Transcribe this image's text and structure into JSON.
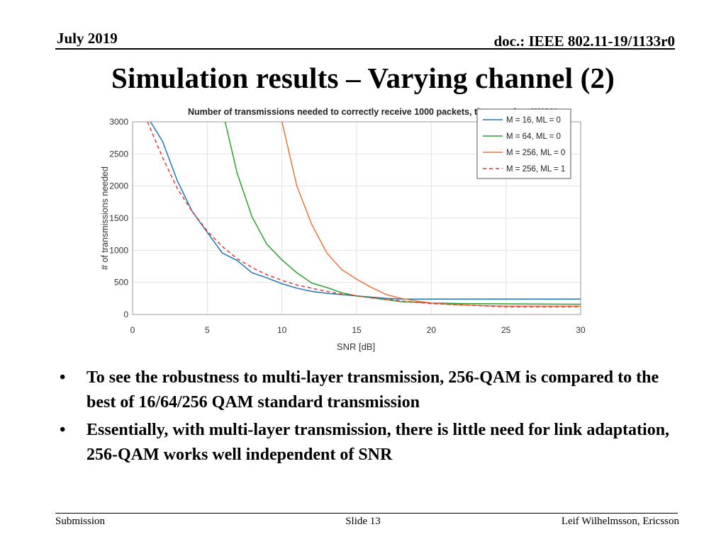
{
  "header": {
    "date": "July 2019",
    "doc": "doc.: IEEE 802.11-19/1133r0"
  },
  "slide": {
    "title": "Simulation results – Varying channel (2)"
  },
  "bullets": [
    "To see the robustness to multi-layer transmission, 256-QAM is compared to the best of 16/64/256 QAM standard transmission",
    "Essentially, with multi-layer transmission, there is little need for link adaptation, 256-QAM works well independent of SNR"
  ],
  "bullet_glyph": "•",
  "footer": {
    "left": "Submission",
    "center": "Slide 13",
    "right": "Leif Wilhelmsson, Ericsson"
  },
  "chart_data": {
    "type": "line",
    "title": "Number of transmissions needed to correctly receive 1000 packets, time-varying AWGN",
    "xlabel": "SNR [dB]",
    "ylabel": "# of transmissions needed",
    "xlim": [
      0,
      30
    ],
    "ylim": [
      0,
      3000
    ],
    "xticks": [
      0,
      5,
      10,
      15,
      20,
      25,
      30
    ],
    "yticks": [
      0,
      500,
      1000,
      1500,
      2000,
      2500,
      3000
    ],
    "grid": true,
    "legend_position": "top-right",
    "series": [
      {
        "name": "M = 16, ML = 0",
        "color": "#1f77b4",
        "dash": "solid",
        "x": [
          1.2,
          2,
          3,
          4,
          5,
          6,
          7,
          8,
          9,
          10,
          11,
          12,
          13,
          14,
          15,
          16,
          17,
          18,
          19,
          20,
          21,
          22,
          25,
          30
        ],
        "y": [
          3000,
          2700,
          2080,
          1600,
          1280,
          960,
          840,
          650,
          570,
          480,
          410,
          360,
          330,
          310,
          290,
          270,
          250,
          240,
          240,
          240,
          240,
          240,
          240,
          240
        ]
      },
      {
        "name": "M = 64, ML = 0",
        "color": "#2ca02c",
        "dash": "solid",
        "x": [
          6.2,
          7,
          8,
          9,
          10,
          11,
          12,
          13,
          14,
          15,
          16,
          17,
          18,
          19,
          20,
          22,
          25,
          30
        ],
        "y": [
          3000,
          2200,
          1520,
          1090,
          850,
          650,
          490,
          420,
          340,
          290,
          260,
          230,
          200,
          190,
          180,
          170,
          165,
          160
        ]
      },
      {
        "name": "M = 256, ML = 0",
        "color": "#e8743b",
        "dash": "solid",
        "x": [
          10,
          11,
          12,
          13,
          14,
          15,
          16,
          17,
          18,
          19,
          20,
          21,
          22,
          23,
          25,
          30
        ],
        "y": [
          3000,
          2000,
          1400,
          960,
          700,
          550,
          420,
          310,
          250,
          210,
          180,
          160,
          150,
          140,
          130,
          130
        ]
      },
      {
        "name": "M = 256, ML = 1",
        "color": "#e3343a",
        "dash": "dashed",
        "x": [
          1.0,
          2,
          3,
          4,
          5,
          6,
          7,
          8,
          9,
          10,
          11,
          12,
          13,
          14,
          15,
          16,
          17,
          18,
          19,
          20,
          22,
          25,
          30
        ],
        "y": [
          3000,
          2450,
          1960,
          1600,
          1300,
          1060,
          870,
          730,
          620,
          530,
          460,
          410,
          360,
          320,
          290,
          260,
          240,
          210,
          190,
          170,
          150,
          120,
          120
        ]
      }
    ]
  }
}
